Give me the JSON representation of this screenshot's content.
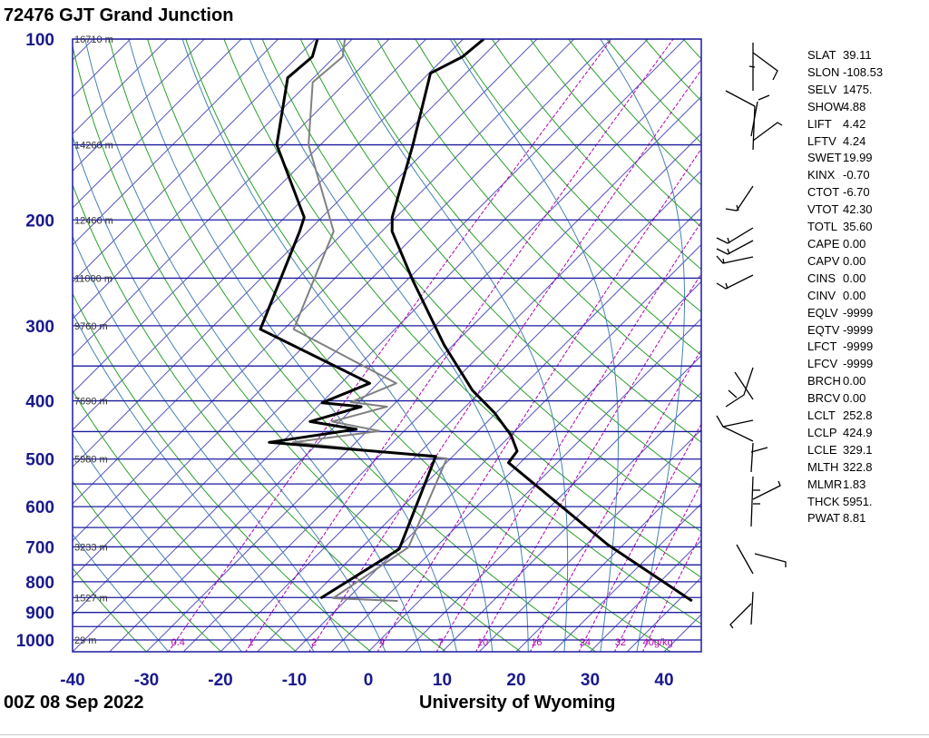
{
  "header": {
    "title": "72476 GJT Grand Junction"
  },
  "footer": {
    "date": "00Z 08 Sep 2022",
    "credit": "University of Wyoming"
  },
  "stats": [
    [
      "SLAT",
      "39.11"
    ],
    [
      "SLON",
      "-108.53"
    ],
    [
      "SELV",
      "1475."
    ],
    [
      "SHOW",
      "4.88"
    ],
    [
      "LIFT",
      "4.42"
    ],
    [
      "LFTV",
      "4.24"
    ],
    [
      "SWET",
      "19.99"
    ],
    [
      "KINX",
      "-0.70"
    ],
    [
      "CTOT",
      "-6.70"
    ],
    [
      "VTOT",
      "42.30"
    ],
    [
      "TOTL",
      "35.60"
    ],
    [
      "CAPE",
      "0.00"
    ],
    [
      "CAPV",
      "0.00"
    ],
    [
      "CINS",
      "0.00"
    ],
    [
      "CINV",
      "0.00"
    ],
    [
      "EQLV",
      "-9999"
    ],
    [
      "EQTV",
      "-9999"
    ],
    [
      "LFCT",
      "-9999"
    ],
    [
      "LFCV",
      "-9999"
    ],
    [
      "BRCH",
      "0.00"
    ],
    [
      "BRCV",
      "0.00"
    ],
    [
      "LCLT",
      "252.8"
    ],
    [
      "LCLP",
      "424.9"
    ],
    [
      "LCLE",
      "329.1"
    ],
    [
      "MLTH",
      "322.8"
    ],
    [
      "MLMR",
      "1.83"
    ],
    [
      "THCK",
      "5951."
    ],
    [
      "PWAT",
      "8.81"
    ]
  ],
  "chart_data": {
    "type": "line",
    "subtype": "skew-t log-p",
    "xlabel": "",
    "ylabel": "",
    "xlim": [
      -40,
      45
    ],
    "ylim_hpa": [
      1050,
      100
    ],
    "x_ticks": [
      "-40",
      "-30",
      "-20",
      "-10",
      "0",
      "10",
      "20",
      "30",
      "40"
    ],
    "x_tick_values": [
      -40,
      -30,
      -20,
      -10,
      0,
      10,
      20,
      30,
      40
    ],
    "y_ticks": [
      "100",
      "200",
      "300",
      "400",
      "500",
      "600",
      "700",
      "800",
      "900",
      "1000"
    ],
    "y_tick_values": [
      100,
      200,
      300,
      400,
      500,
      600,
      700,
      800,
      900,
      1000
    ],
    "isobar_step_hpa": 50,
    "isotherm_step_c": 5,
    "heights": [
      {
        "p": 100,
        "label": "16710 m"
      },
      {
        "p": 150,
        "label": "14260 m"
      },
      {
        "p": 200,
        "label": "12460 m"
      },
      {
        "p": 250,
        "label": "11000 m"
      },
      {
        "p": 300,
        "label": "9760 m"
      },
      {
        "p": 400,
        "label": "7690 m"
      },
      {
        "p": 500,
        "label": "5980 m"
      },
      {
        "p": 700,
        "label": "3233 m"
      },
      {
        "p": 850,
        "label": "1527 m"
      },
      {
        "p": 1000,
        "label": "29 m"
      }
    ],
    "mixing_ratios": [
      0.4,
      1,
      2,
      4,
      7,
      10,
      16,
      24,
      32,
      40
    ],
    "mixing_ratio_labels": [
      "0.4",
      "1",
      "2",
      "4",
      "7",
      "10",
      "16",
      "24",
      "32",
      "40g/kg"
    ],
    "colors": {
      "frame": "#1c1ca0",
      "isotherm": "#3c3cb4",
      "dry": "#2aa02a",
      "moist": "#4682b4",
      "mixing": "#b000b0",
      "label": "#1a1a8c",
      "trace": "#000000",
      "trace2": "#808080"
    },
    "series": {
      "temperature": {
        "p": [
          861,
          694,
          507,
          485,
          457,
          419,
          384,
          323,
          253,
          209,
          198,
          150,
          114,
          107,
          100
        ],
        "t": [
          36.9,
          17.9,
          -6.6,
          -7.0,
          -9.9,
          -15.2,
          -21.3,
          -31.2,
          -44.0,
          -53.6,
          -55.5,
          -62.5,
          -69.8,
          -67.7,
          -67.2
        ]
      },
      "dewpoint": {
        "p": [
          852,
          706,
          495,
          469,
          446,
          433,
          409,
          403,
          374,
          304,
          209,
          198,
          150,
          116,
          107,
          100
        ],
        "t": [
          -13.7,
          -9.7,
          -17.3,
          -41.7,
          -31.7,
          -39.0,
          -34.1,
          -39.9,
          -36.1,
          -58.2,
          -66.1,
          -67.4,
          -80.9,
          -88.5,
          -88.0,
          -89.7
        ]
      },
      "gray_trace": {
        "p": [
          861,
          852,
          701,
          499,
          469,
          449,
          433,
          409,
          402,
          374,
          304,
          209,
          150,
          118,
          107,
          100
        ],
        "t": [
          -2.9,
          -12.0,
          -8.7,
          -15.5,
          -38.5,
          -28.3,
          -36.0,
          -30.6,
          -36.1,
          -32.5,
          -53.7,
          -61.5,
          -76.6,
          -84.5,
          -83.9,
          -86.0
        ]
      }
    }
  }
}
